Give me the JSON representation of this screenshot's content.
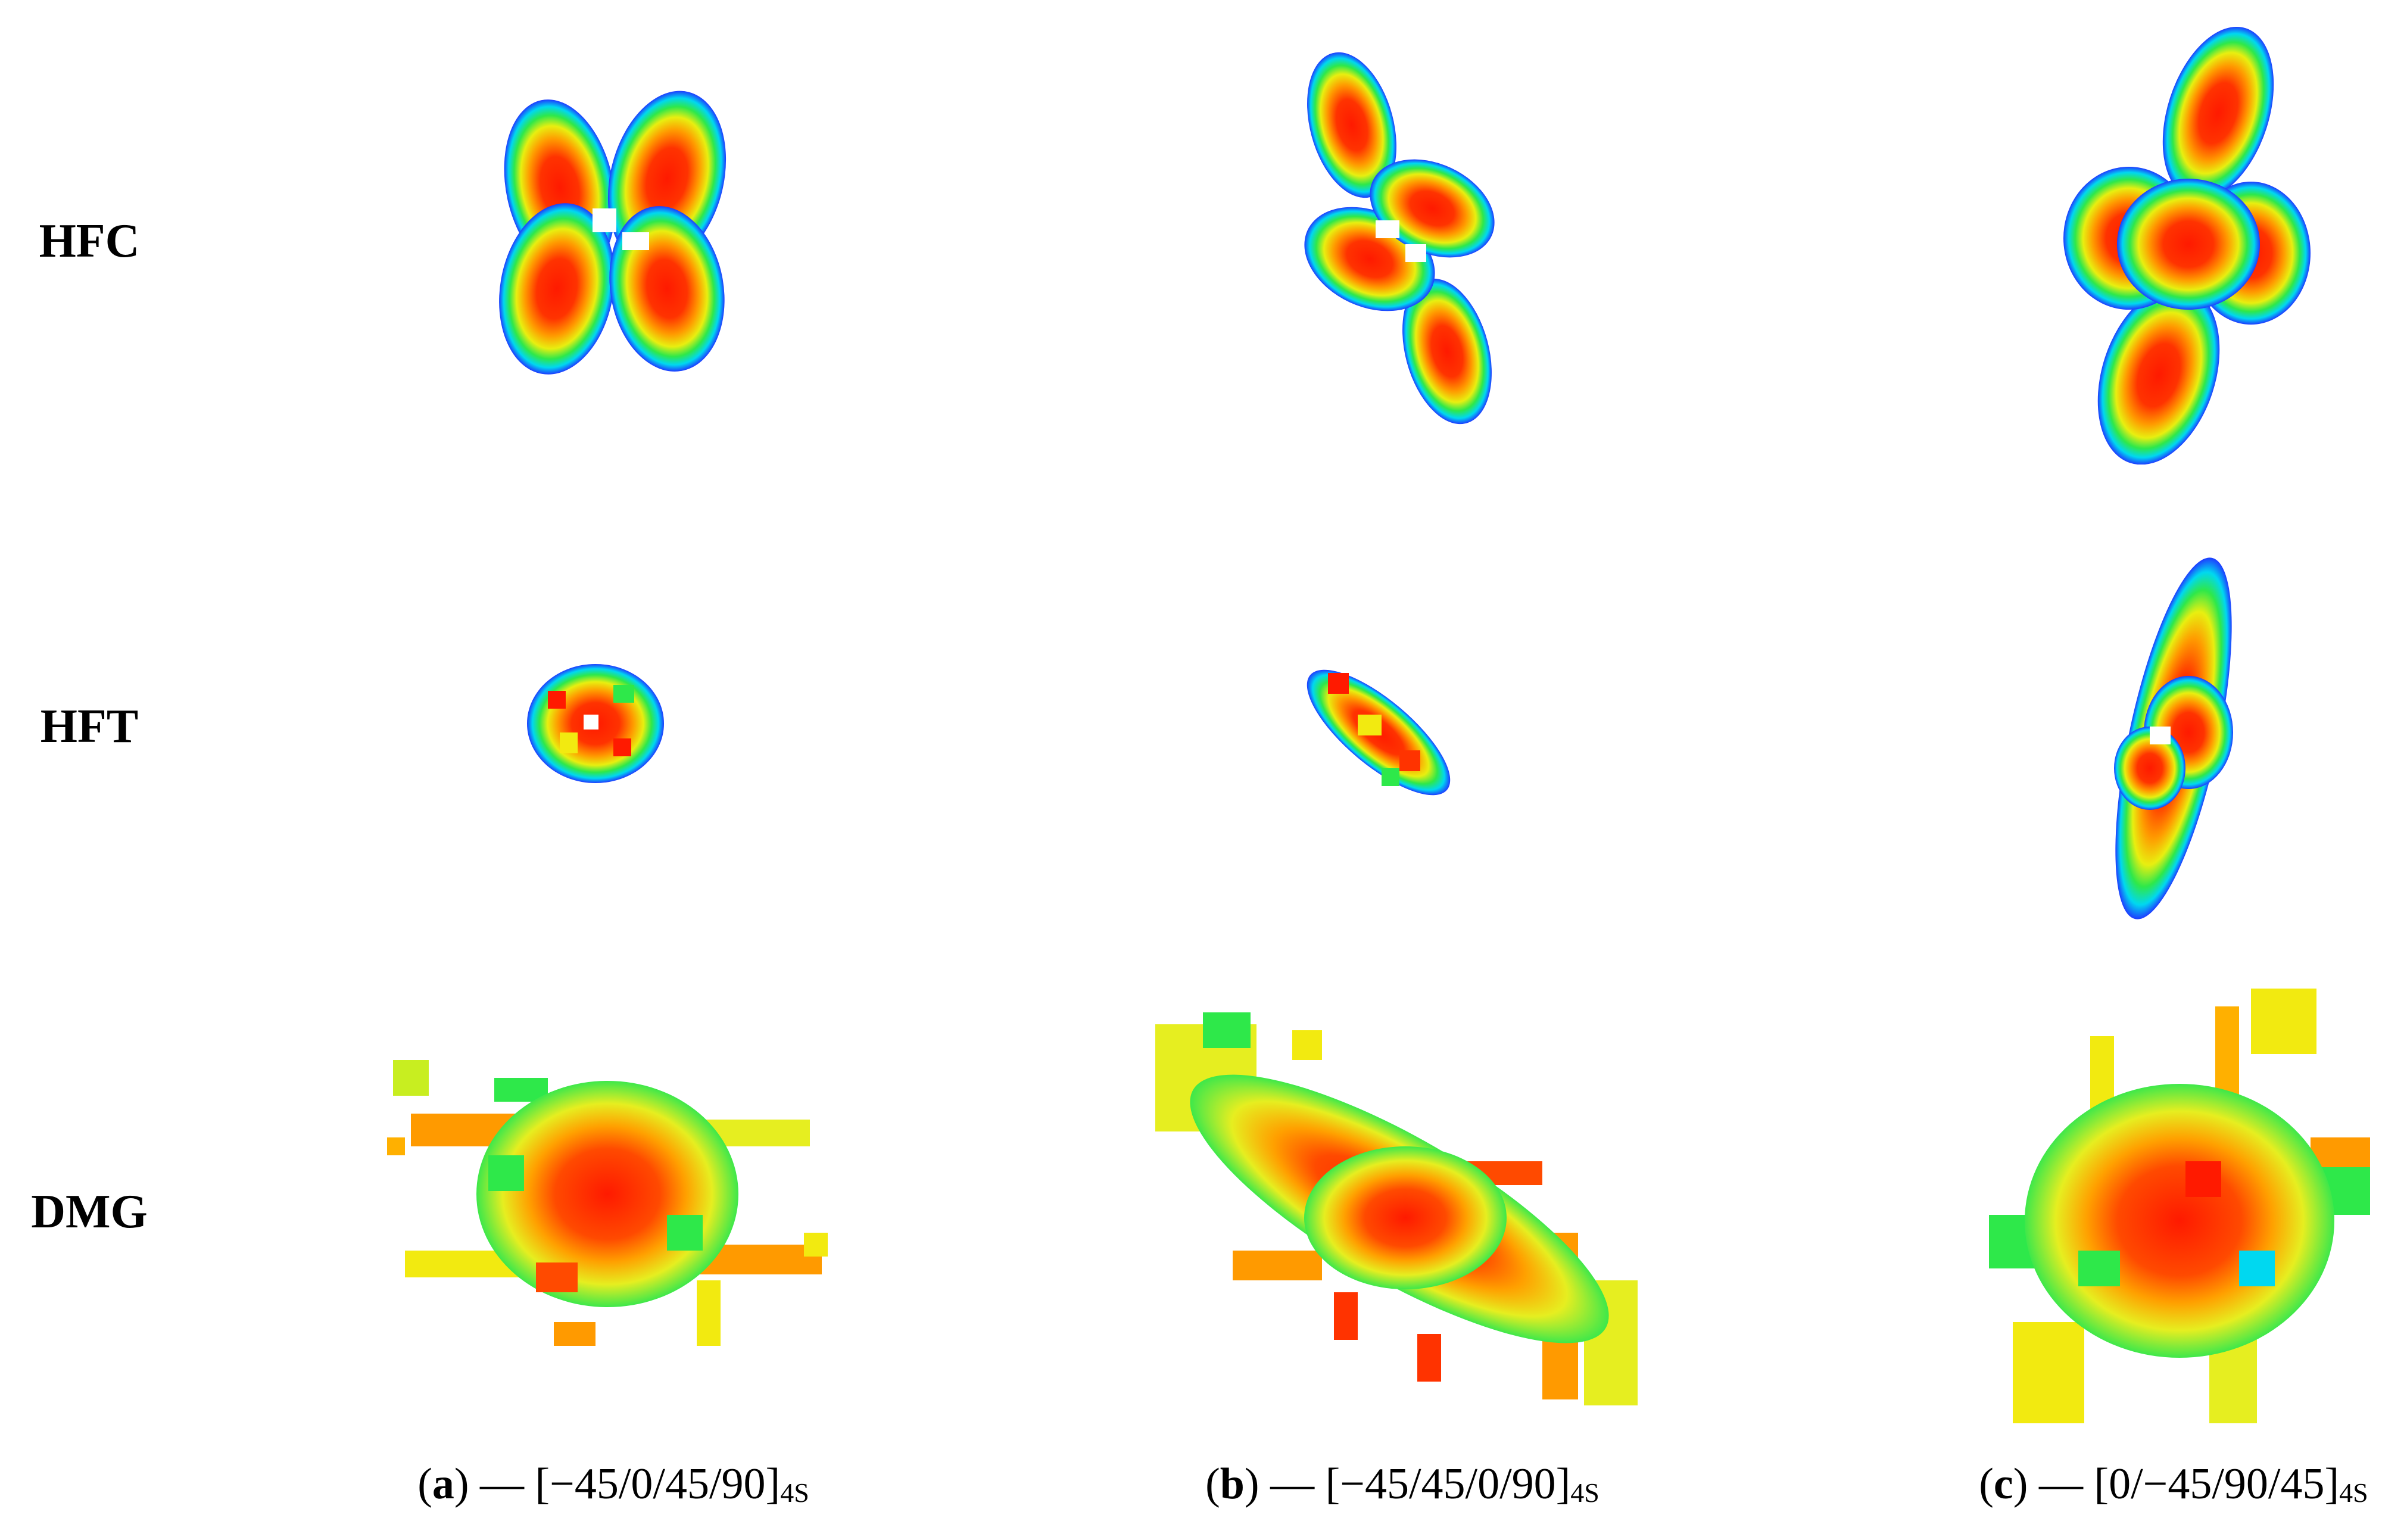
{
  "rows": [
    {
      "id": "hfc",
      "label": "HFC"
    },
    {
      "id": "hft",
      "label": "HFT"
    },
    {
      "id": "dmg",
      "label": "DMG"
    }
  ],
  "columns": [
    {
      "id": "a",
      "letter": "a",
      "dash": " — ",
      "layup": "[−45/0/45/90]",
      "sub": "4S"
    },
    {
      "id": "b",
      "letter": "b",
      "dash": " — ",
      "layup": "[−45/45/0/90]",
      "sub": "4S"
    },
    {
      "id": "c",
      "letter": "c",
      "dash": " — ",
      "layup": "[0/−45/90/45]",
      "sub": "4S"
    }
  ],
  "colors": {
    "blue": "#1e3cff",
    "cyan": "#00d8f0",
    "green": "#2ee84a",
    "yellow": "#f2ea10",
    "orange": "#ff8c00",
    "red": "#ff1a00"
  }
}
